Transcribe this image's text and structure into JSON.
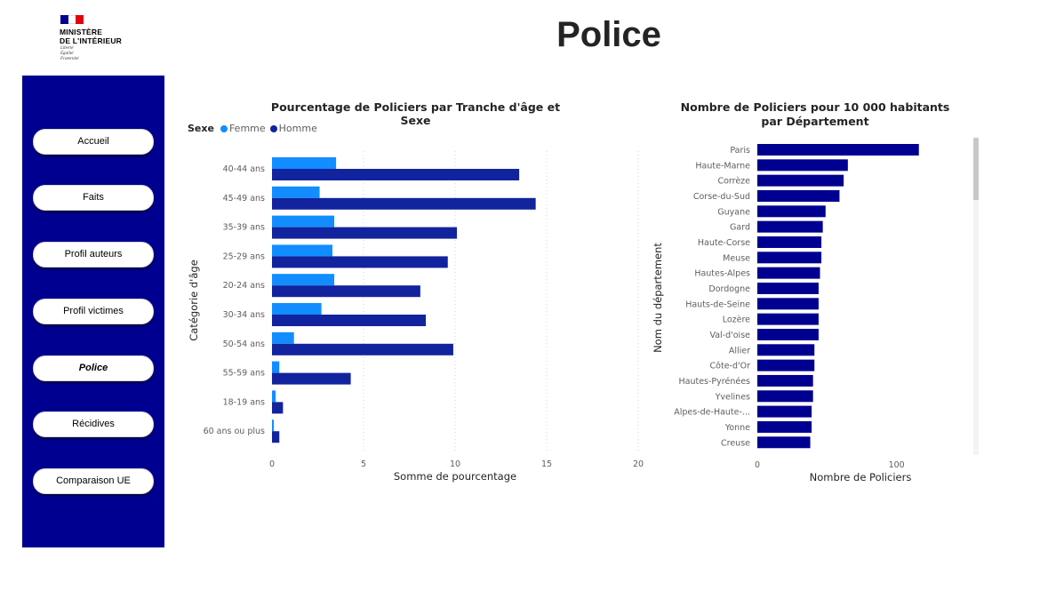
{
  "logo": {
    "line1": "MINISTÈRE",
    "line2": "DE L'INTÉRIEUR",
    "motto": [
      "Liberté",
      "Égalité",
      "Fraternité"
    ],
    "flag_colors": [
      "#000091",
      "#ffffff",
      "#e1000f"
    ]
  },
  "page": {
    "title": "Police"
  },
  "sidebar": {
    "background": "#000090",
    "items": [
      {
        "label": "Accueil",
        "active": false
      },
      {
        "label": "Faits",
        "active": false
      },
      {
        "label": "Profil auteurs",
        "active": false
      },
      {
        "label": "Profil victimes",
        "active": false
      },
      {
        "label": "Police",
        "active": true
      },
      {
        "label": "Récidives",
        "active": false
      },
      {
        "label": "Comparaison UE",
        "active": false
      }
    ]
  },
  "legend": {
    "title": "Sexe",
    "items": [
      {
        "label": "Femme",
        "color": "#118dff"
      },
      {
        "label": "Homme",
        "color": "#12239e"
      }
    ]
  },
  "chart_data": [
    {
      "type": "bar",
      "orientation": "horizontal",
      "title": "Pourcentage de Policiers par Tranche d'âge et Sexe",
      "xlabel": "Somme de pourcentage",
      "ylabel": "Catégorie d'âge",
      "xlim": [
        0,
        20
      ],
      "xticks": [
        "0",
        "5",
        "10",
        "15",
        "20"
      ],
      "grid": true,
      "legend_position": "top-left",
      "categories": [
        "40-44 ans",
        "45-49 ans",
        "35-39 ans",
        "25-29 ans",
        "20-24 ans",
        "30-34 ans",
        "50-54 ans",
        "55-59 ans",
        "18-19 ans",
        "60 ans ou plus"
      ],
      "series": [
        {
          "name": "Femme",
          "color": "#118dff",
          "values": [
            3.5,
            2.6,
            3.4,
            3.3,
            3.4,
            2.7,
            1.2,
            0.4,
            0.2,
            0.1
          ]
        },
        {
          "name": "Homme",
          "color": "#12239e",
          "values": [
            13.5,
            14.4,
            10.1,
            9.6,
            8.1,
            8.4,
            9.9,
            4.3,
            0.6,
            0.4
          ]
        }
      ]
    },
    {
      "type": "bar",
      "orientation": "horizontal",
      "title": "Nombre de Policiers pour 10 000 habitants par Département",
      "xlabel": "Nombre de Policiers",
      "ylabel": "Nom du département",
      "xlim": [
        0,
        150
      ],
      "xticks": [
        "0",
        "100"
      ],
      "grid": false,
      "color": "#000090",
      "categories": [
        "Paris",
        "Haute-Marne",
        "Corrèze",
        "Corse-du-Sud",
        "Guyane",
        "Gard",
        "Haute-Corse",
        "Meuse",
        "Hautes-Alpes",
        "Dordogne",
        "Hauts-de-Seine",
        "Lozère",
        "Val-d'oise",
        "Allier",
        "Côte-d'Or",
        "Hautes-Pyrénées",
        "Yvelines",
        "Alpes-de-Haute-...",
        "Yonne",
        "Creuse"
      ],
      "values": [
        116,
        65,
        62,
        59,
        49,
        47,
        46,
        46,
        45,
        44,
        44,
        44,
        44,
        41,
        41,
        40,
        40,
        39,
        39,
        38
      ]
    }
  ]
}
